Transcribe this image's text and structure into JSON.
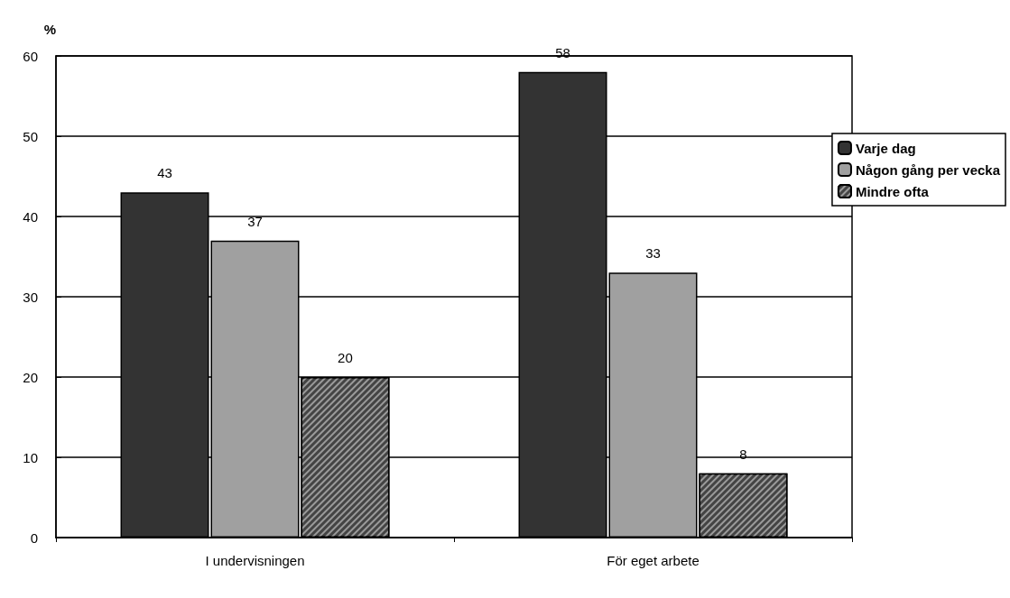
{
  "chart_data": {
    "type": "bar",
    "ylabel": "%",
    "categories": [
      "I undervisningen",
      "För eget arbete"
    ],
    "series": [
      {
        "name": "Varje dag",
        "color": "#333333",
        "values": [
          43,
          58
        ]
      },
      {
        "name": "Någon gång per vecka",
        "color": "#a0a0a0",
        "values": [
          37,
          33
        ]
      },
      {
        "name": "Mindre ofta",
        "color": "#444444",
        "values": [
          20,
          8
        ]
      }
    ],
    "ylim": [
      0,
      60
    ],
    "yticks": [
      0,
      10,
      20,
      30,
      40,
      50,
      60
    ],
    "grid": "y",
    "legend": "right",
    "data_labels": true
  }
}
